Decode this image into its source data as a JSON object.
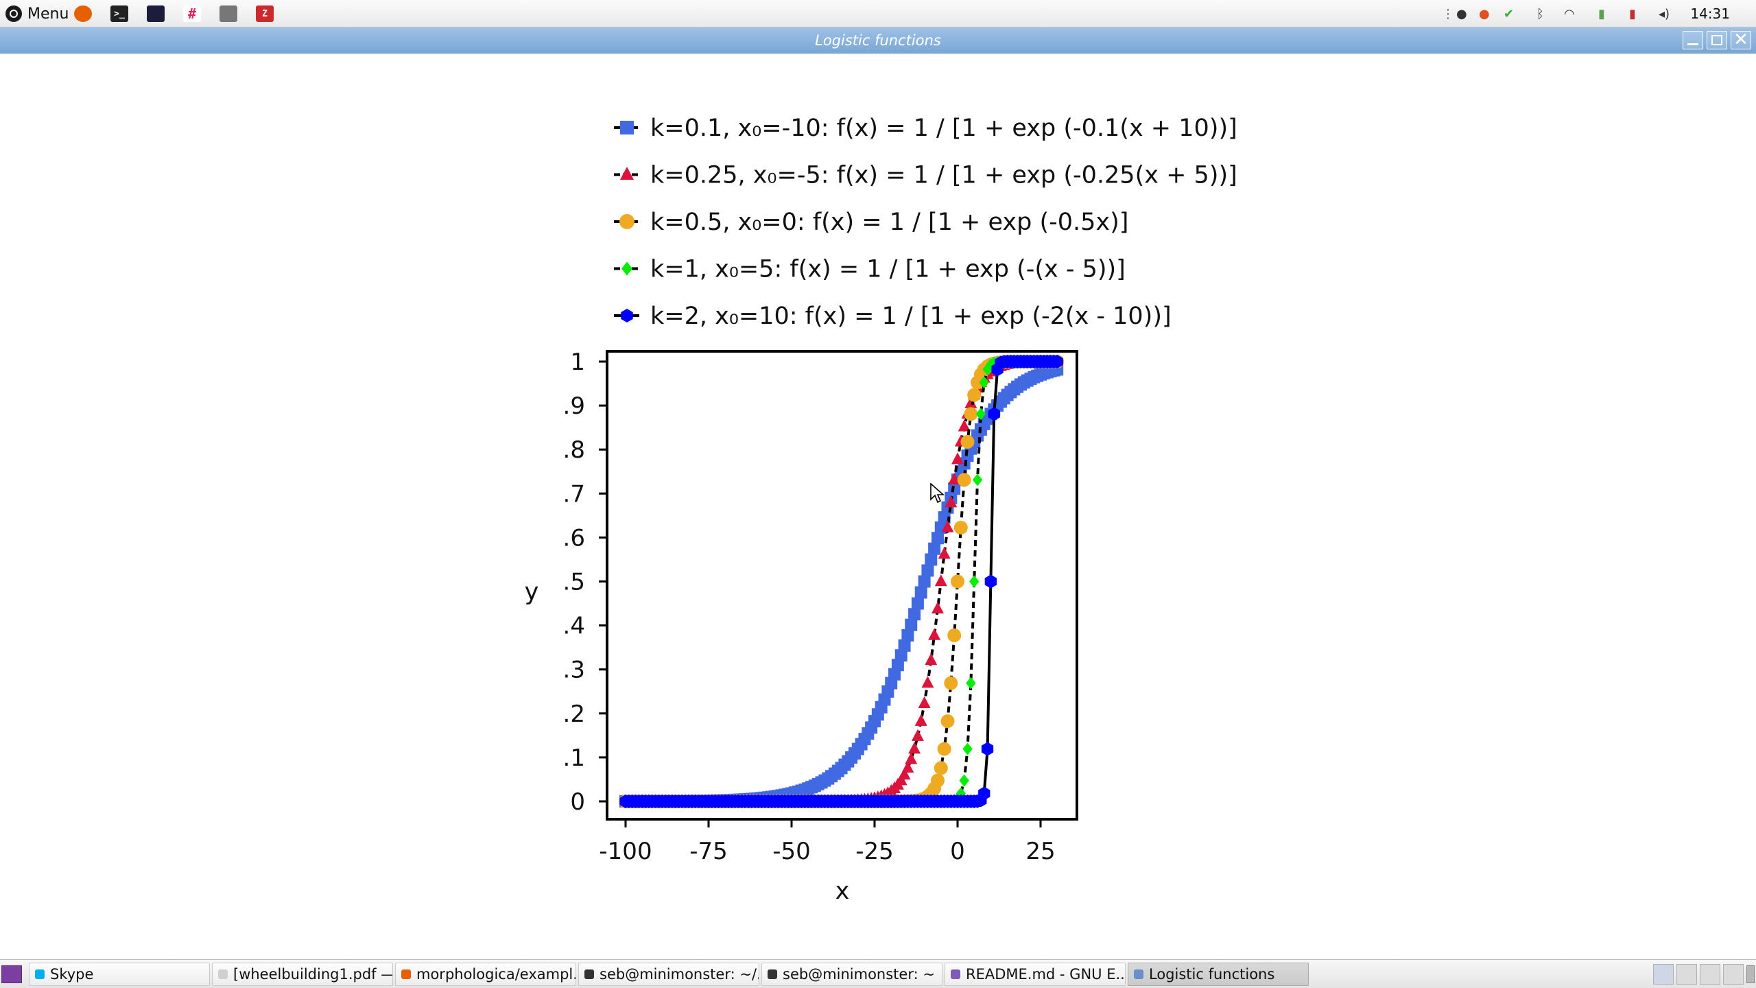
{
  "panel": {
    "menu_label": "Menu",
    "clock": "14:31",
    "launchers": [
      "firefox-icon",
      "terminal-icon",
      "system-monitor-icon",
      "slack-icon",
      "file-manager-icon",
      "zotero-icon"
    ],
    "launcher_glyphs": [
      "",
      ">_",
      "",
      "#",
      "",
      "Z"
    ],
    "tray": [
      "dots-icon",
      "mouse-icon",
      "status-orange-icon",
      "update-check-icon",
      "bluetooth-icon",
      "wifi-icon",
      "battery-green-icon",
      "battery-red-icon",
      "volume-icon"
    ],
    "tray_glyphs": [
      "⋮",
      "●",
      "●",
      "✔",
      "ᛒ",
      "◠",
      "▮",
      "▮",
      "◂)"
    ]
  },
  "window": {
    "title": "Logistic functions"
  },
  "chart_data": {
    "type": "scatter",
    "xlabel": "x",
    "ylabel": "y",
    "xlim": [
      -100,
      30
    ],
    "ylim": [
      0,
      1
    ],
    "xticks": [
      -100,
      -75,
      -50,
      -25,
      0,
      25
    ],
    "xtick_labels": [
      "-100",
      "-75",
      "-50",
      "-25",
      "0",
      "25"
    ],
    "yticks": [
      0,
      0.1,
      0.2,
      0.3,
      0.4,
      0.5,
      0.6,
      0.7,
      0.8,
      0.9,
      1
    ],
    "ytick_labels": [
      "0",
      ".1",
      ".2",
      ".3",
      ".4",
      ".5",
      ".6",
      ".7",
      ".8",
      ".9",
      "1"
    ],
    "grid": false,
    "legend_position": "top",
    "series": [
      {
        "name": "k=0.1, x₀=-10: f(x) = 1 / [1 + exp (-0.1(x + 10))]",
        "k": 0.1,
        "x0": -10,
        "x_range": [
          -100,
          30
        ],
        "step": 1,
        "color": "#4169e1",
        "marker": "square",
        "line": "dashed"
      },
      {
        "name": "k=0.25, x₀=-5: f(x) = 1 / [1 + exp (-0.25(x + 5))]",
        "k": 0.25,
        "x0": -5,
        "x_range": [
          -100,
          30
        ],
        "step": 1,
        "color": "#dc143c",
        "marker": "triangle",
        "line": "dashed"
      },
      {
        "name": "k=0.5, x₀=0: f(x) = 1 / [1 + exp (-0.5x)]",
        "k": 0.5,
        "x0": 0,
        "x_range": [
          -100,
          30
        ],
        "step": 1,
        "color": "#eeab22",
        "marker": "circle",
        "line": "dashed"
      },
      {
        "name": "k=1, x₀=5: f(x) = 1 / [1 + exp (-(x - 5))]",
        "k": 1,
        "x0": 5,
        "x_range": [
          -100,
          30
        ],
        "step": 1,
        "color": "#00ee00",
        "marker": "diamond",
        "line": "dashed"
      },
      {
        "name": "k=2, x₀=10: f(x) = 1 / [1 + exp (-2(x - 10))]",
        "k": 2,
        "x0": 10,
        "x_range": [
          -100,
          30
        ],
        "step": 1,
        "color": "#0000ff",
        "marker": "hexagon",
        "line": "solid"
      }
    ]
  },
  "taskbar": {
    "tasks": [
      {
        "label": "Skype",
        "color": "#00aff0",
        "active": false
      },
      {
        "label": "[wheelbuilding1.pdf —...",
        "color": "#d0d0d0",
        "active": false
      },
      {
        "label": "morphologica/exampl...",
        "color": "#e66000",
        "active": false
      },
      {
        "label": "seb@minimonster: ~/...",
        "color": "#333333",
        "active": false
      },
      {
        "label": "seb@minimonster: ~",
        "color": "#333333",
        "active": false
      },
      {
        "label": "README.md - GNU E...",
        "color": "#7f5ab6",
        "active": false
      },
      {
        "label": "Logistic functions",
        "color": "#6a8fc8",
        "active": true
      }
    ]
  }
}
